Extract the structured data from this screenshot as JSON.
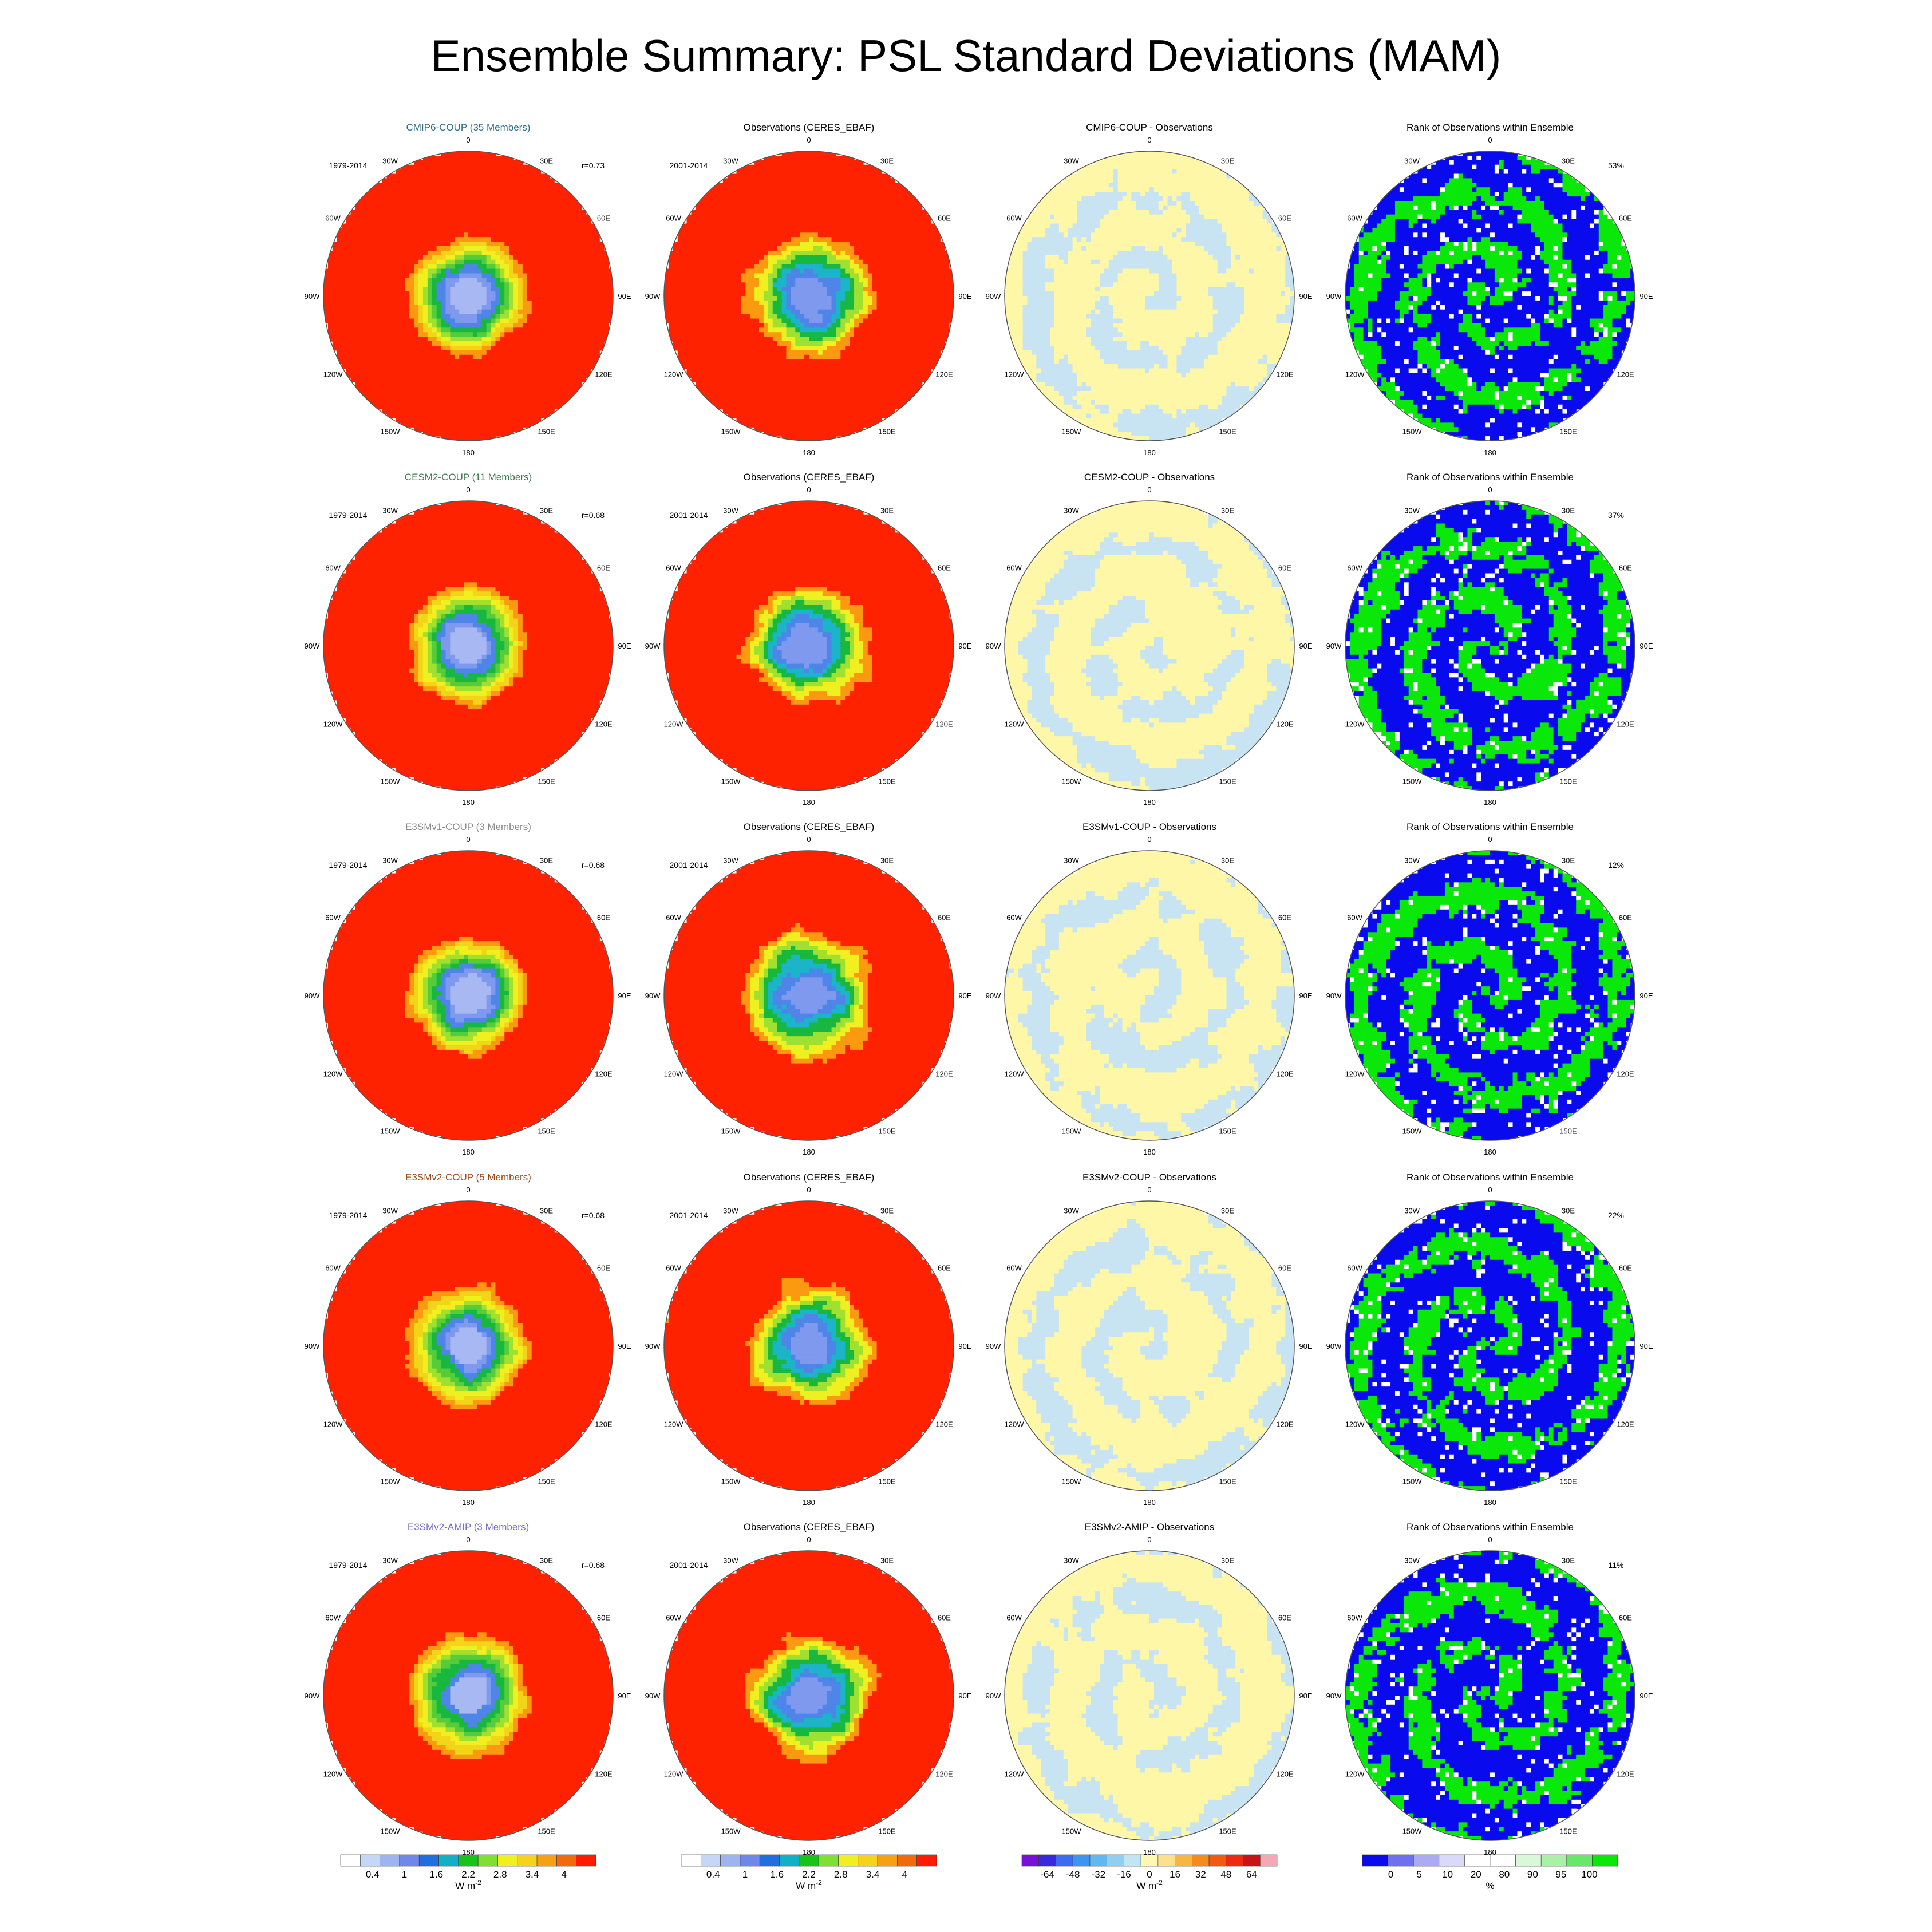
{
  "title": "Ensemble Summary: PSL Standard Deviations (MAM)",
  "chart_data": {
    "type": "heatmap",
    "projection": "south polar stereographic",
    "longitude_labels": [
      "0",
      "30E",
      "60E",
      "90E",
      "120E",
      "150E",
      "180",
      "150W",
      "120W",
      "90W",
      "60W",
      "30W"
    ],
    "columns": [
      {
        "role": "ensemble mean std dev",
        "colorbar": "std"
      },
      {
        "role": "observations std dev",
        "colorbar": "std"
      },
      {
        "role": "model minus observations",
        "colorbar": "diff"
      },
      {
        "role": "rank of observations",
        "colorbar": "rank"
      }
    ],
    "rows": [
      {
        "model_title": "CMIP6-COUP (35 Members)",
        "model_title_color": "#2b6f8a",
        "model_years": "1979-2014",
        "pattern_r": "r=0.73",
        "obs_title": "Observations (CERES_EBAF)",
        "obs_years": "2001-2014",
        "diff_title": "CMIP6-COUP - Observations",
        "rank_title": "Rank of Observations within Ensemble",
        "rank_pct": "53%"
      },
      {
        "model_title": "CESM2-COUP (11 Members)",
        "model_title_color": "#3d7a4e",
        "model_years": "1979-2014",
        "pattern_r": "r=0.68",
        "obs_title": "Observations (CERES_EBAF)",
        "obs_years": "2001-2014",
        "diff_title": "CESM2-COUP - Observations",
        "rank_title": "Rank of Observations within Ensemble",
        "rank_pct": "37%"
      },
      {
        "model_title": "E3SMv1-COUP (3 Members)",
        "model_title_color": "#8a8a8a",
        "model_years": "1979-2014",
        "pattern_r": "r=0.68",
        "obs_title": "Observations (CERES_EBAF)",
        "obs_years": "2001-2014",
        "diff_title": "E3SMv1-COUP - Observations",
        "rank_title": "Rank of Observations within Ensemble",
        "rank_pct": "12%"
      },
      {
        "model_title": "E3SMv2-COUP (5 Members)",
        "model_title_color": "#9b4a1c",
        "model_years": "1979-2014",
        "pattern_r": "r=0.68",
        "obs_title": "Observations (CERES_EBAF)",
        "obs_years": "2001-2014",
        "diff_title": "E3SMv2-COUP - Observations",
        "rank_title": "Rank of Observations within Ensemble",
        "rank_pct": "22%"
      },
      {
        "model_title": "E3SMv2-AMIP (3 Members)",
        "model_title_color": "#7a6fc4",
        "model_years": "1979-2014",
        "pattern_r": "r=0.68",
        "obs_title": "Observations (CERES_EBAF)",
        "obs_years": "2001-2014",
        "diff_title": "E3SMv2-AMIP - Observations",
        "rank_title": "Rank of Observations within Ensemble",
        "rank_pct": "11%"
      }
    ],
    "colorbars": {
      "std": {
        "colors": [
          "#ffffff",
          "#c6d6f7",
          "#9db3f2",
          "#6f86ea",
          "#1f6fe0",
          "#10b0c8",
          "#18c418",
          "#7ee030",
          "#f0f020",
          "#f6d21a",
          "#f7a012",
          "#f26a0c",
          "#ff1a00"
        ],
        "tick_labels": [
          "0.4",
          "1",
          "1.6",
          "2.2",
          "2.8",
          "3.4",
          "4"
        ],
        "units": "W m",
        "units_exponent": "-2"
      },
      "diff": {
        "colors": [
          "#7a10d8",
          "#3a28e0",
          "#3c6cf0",
          "#3a96f0",
          "#5fb8f0",
          "#8fd0f0",
          "#c0e6f4",
          "#fff8b0",
          "#fce08a",
          "#f8b640",
          "#f68a1a",
          "#f25a10",
          "#ee2a10",
          "#c81414",
          "#f4a8b4"
        ],
        "tick_labels": [
          "-64",
          "-48",
          "-32",
          "-16",
          "0",
          "16",
          "32",
          "48",
          "64"
        ],
        "units": "W m",
        "units_exponent": "-2"
      },
      "rank": {
        "colors": [
          "#0a0aee",
          "#6f6ff2",
          "#aaaaf5",
          "#d9d9fa",
          "#ffffff",
          "#ffffff",
          "#d8f8d8",
          "#a8f2a8",
          "#68e868",
          "#0ae80a"
        ],
        "tick_labels": [
          "0",
          "5",
          "10",
          "20",
          "80",
          "90",
          "95",
          "100"
        ],
        "units": "%"
      }
    },
    "palettes": {
      "model": [
        "#ff2200",
        "#ff2200",
        "#ff2200",
        "#fb9a10",
        "#f2d418",
        "#f0f020",
        "#9fe030",
        "#56cc3a",
        "#18b840",
        "#4f84e8",
        "#7f99ee",
        "#a8b8f2"
      ],
      "obs": [
        "#ff2200",
        "#ff2200",
        "#fb9a10",
        "#f0f020",
        "#9fe030",
        "#18b840",
        "#1cb4c8",
        "#4f84e8",
        "#7f99ee"
      ],
      "diff": [
        "#fff7a8",
        "#fff7a8",
        "#c8e4f2",
        "#fff7a8",
        "#c8e4f2"
      ],
      "rank": [
        "#0a0aee",
        "#0ae80a",
        "#0ae80a",
        "#ffffff"
      ]
    }
  }
}
